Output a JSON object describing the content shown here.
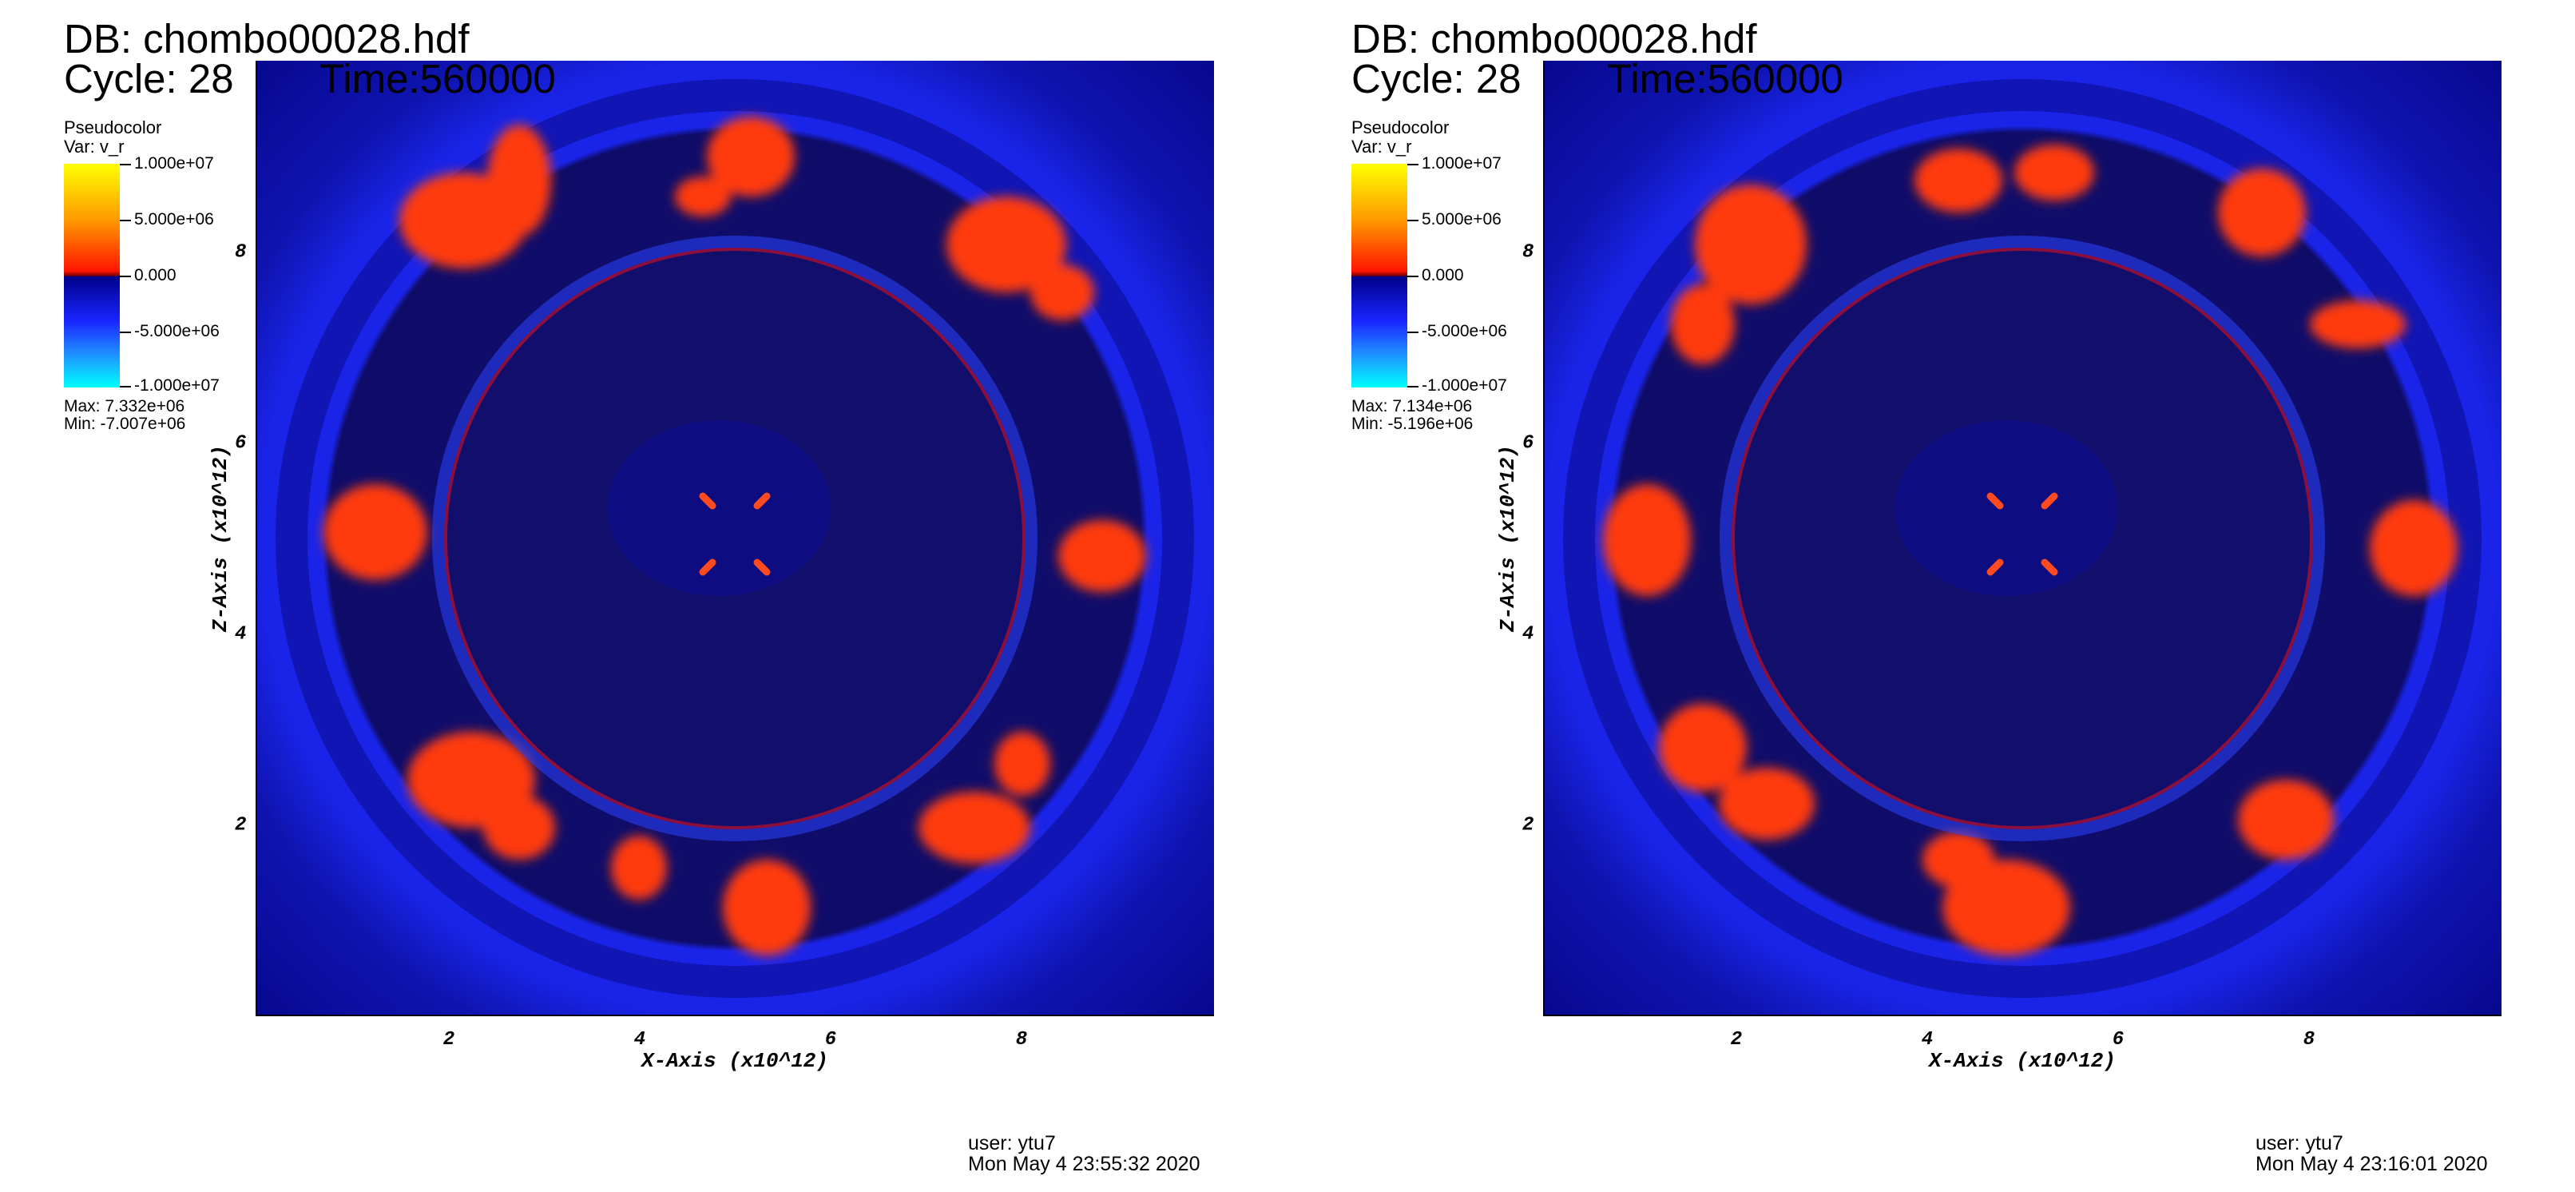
{
  "panels": [
    {
      "db_title": "DB: chombo00028.hdf",
      "cycle_label": "Cycle: 28",
      "time_label": "Time:560000",
      "legend": {
        "title": "Pseudocolor",
        "var": "Var: v_r",
        "ticks": [
          "1.000e+07",
          "5.000e+06",
          "0.000",
          "-5.000e+06",
          "-1.000e+07"
        ],
        "max": "Max:  7.332e+06",
        "min": "Min: -7.007e+06"
      },
      "x_axis_title": "X-Axis (x10^12)",
      "y_axis_title": "Z-Axis (x10^12)",
      "x_ticks": [
        "2",
        "4",
        "6",
        "8"
      ],
      "y_ticks": [
        "8",
        "6",
        "4",
        "2"
      ],
      "user": "user: ytu7",
      "date": "Mon May  4 23:55:32 2020"
    },
    {
      "db_title": "DB: chombo00028.hdf",
      "cycle_label": "Cycle: 28",
      "time_label": "Time:560000",
      "legend": {
        "title": "Pseudocolor",
        "var": "Var: v_r",
        "ticks": [
          "1.000e+07",
          "5.000e+06",
          "0.000",
          "-5.000e+06",
          "-1.000e+07"
        ],
        "max": "Max:  7.134e+06",
        "min": "Min: -5.196e+06"
      },
      "x_axis_title": "X-Axis (x10^12)",
      "y_axis_title": "Z-Axis (x10^12)",
      "x_ticks": [
        "2",
        "4",
        "6",
        "8"
      ],
      "y_ticks": [
        "8",
        "6",
        "4",
        "2"
      ],
      "user": "user: ytu7",
      "date": "Mon May  4 23:16:01 2020"
    }
  ],
  "colors": {
    "background": "#ffffff",
    "field_blue": "#1a24e8",
    "interior": "#130f6e",
    "outflow_red": "#ff3a10",
    "colorbar_top": "#ffff00",
    "colorbar_bottom": "#00ffff"
  }
}
